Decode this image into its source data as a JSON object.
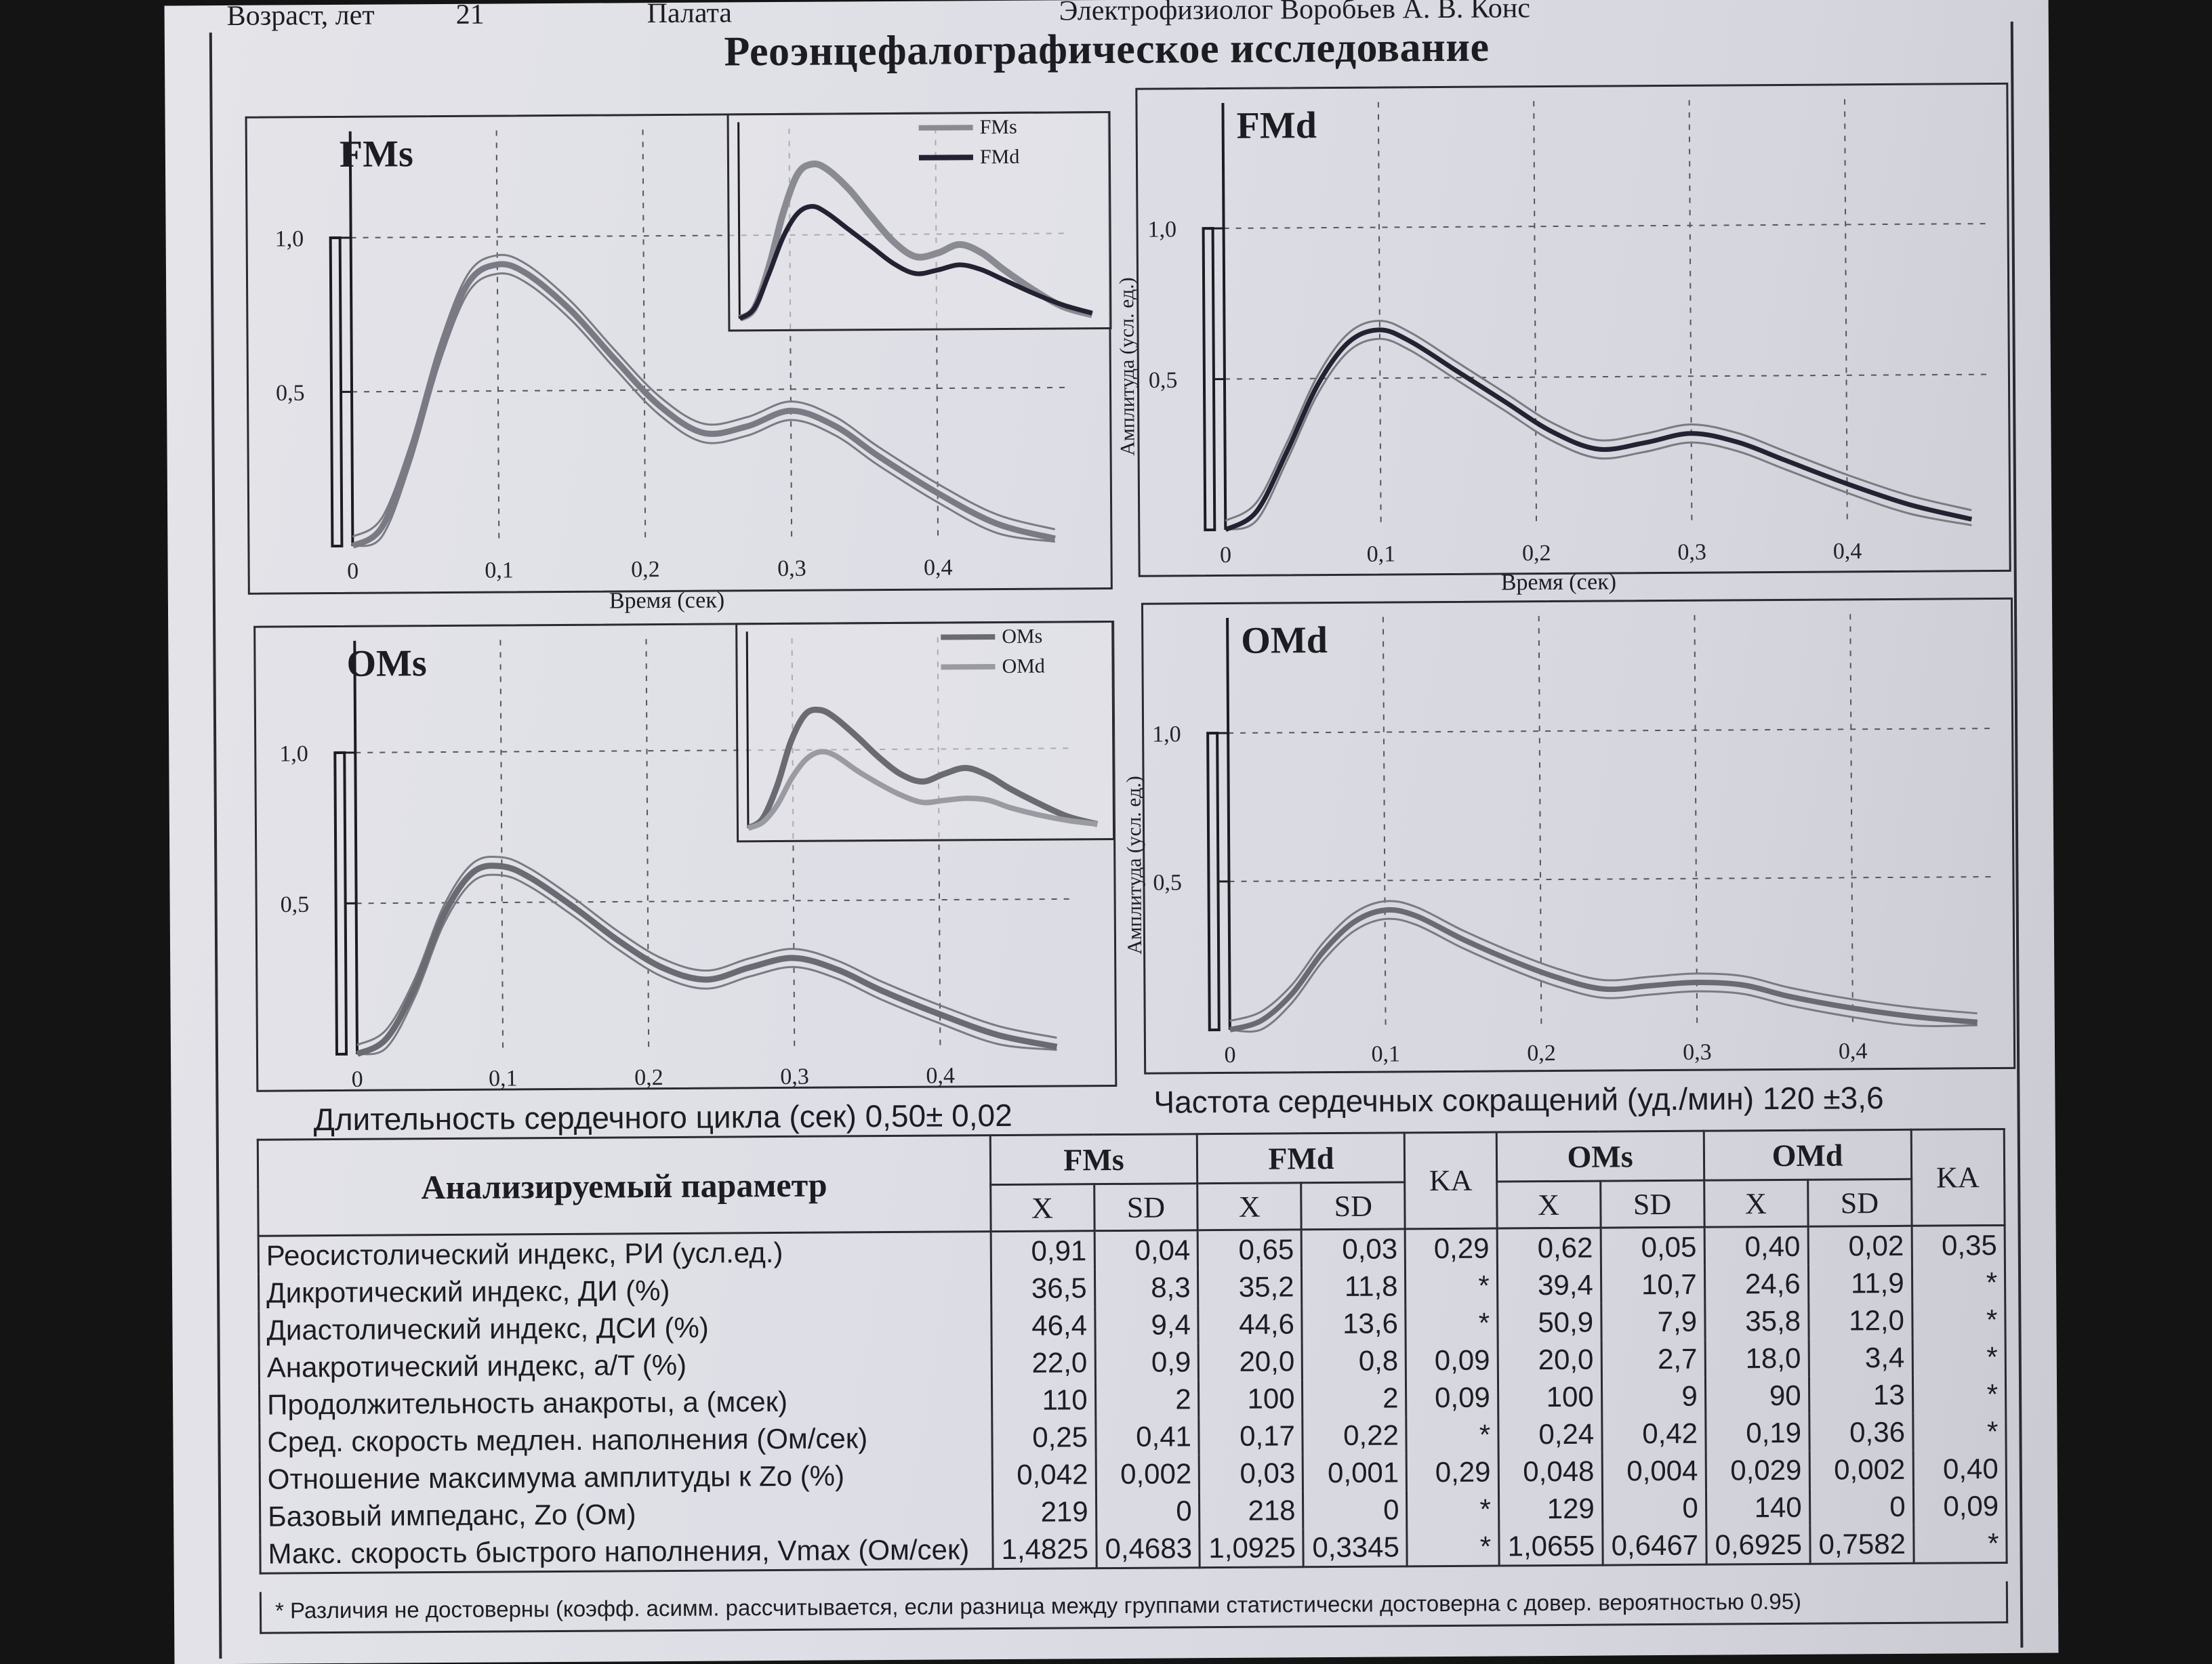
{
  "header": {
    "age_label": "Возраст, лет",
    "age_value": "21",
    "ward_label": "Палата",
    "doctor_label": "Электрофизиолог Воробьев А. В. Конс"
  },
  "title": "Реоэнцефалографическое исследование",
  "axis": {
    "time_label": "Время (сек)",
    "amplitude_label": "Амплитуда (усл. ед.)",
    "x_ticks": [
      "0",
      "0,1",
      "0,2",
      "0,3",
      "0,4"
    ],
    "y_ticks": [
      "1,0",
      "0,5"
    ]
  },
  "panels": {
    "FMs": {
      "label": "FMs"
    },
    "FMd": {
      "label": "FMd"
    },
    "OMs": {
      "label": "OMs"
    },
    "OMd": {
      "label": "OMd"
    }
  },
  "insets": {
    "top": {
      "legend": [
        "FMs",
        "FMd"
      ]
    },
    "bottom": {
      "legend": [
        "OMs",
        "OMd"
      ]
    }
  },
  "chart_data": [
    {
      "type": "line",
      "title": "FMs",
      "xlabel": "Время (сек)",
      "ylabel": "",
      "xlim": [
        0,
        0.49
      ],
      "ylim": [
        0,
        1.0
      ],
      "series": [
        {
          "name": "FMs",
          "x": [
            0,
            0.02,
            0.04,
            0.06,
            0.08,
            0.1,
            0.12,
            0.15,
            0.18,
            0.21,
            0.24,
            0.27,
            0.3,
            0.33,
            0.36,
            0.4,
            0.44,
            0.48
          ],
          "values": [
            0,
            0.06,
            0.3,
            0.62,
            0.85,
            0.91,
            0.88,
            0.76,
            0.6,
            0.45,
            0.36,
            0.38,
            0.43,
            0.38,
            0.28,
            0.16,
            0.06,
            0.01
          ]
        }
      ]
    },
    {
      "type": "line",
      "title": "FMd",
      "xlabel": "Время (сек)",
      "ylabel": "Амплитуда (усл. ед.)",
      "xlim": [
        0,
        0.49
      ],
      "ylim": [
        0,
        1.0
      ],
      "series": [
        {
          "name": "FMd",
          "x": [
            0,
            0.02,
            0.04,
            0.06,
            0.08,
            0.1,
            0.12,
            0.15,
            0.18,
            0.21,
            0.24,
            0.27,
            0.3,
            0.33,
            0.36,
            0.4,
            0.44,
            0.48
          ],
          "values": [
            0,
            0.06,
            0.26,
            0.48,
            0.62,
            0.66,
            0.62,
            0.52,
            0.42,
            0.32,
            0.26,
            0.28,
            0.31,
            0.28,
            0.22,
            0.14,
            0.07,
            0.02
          ]
        }
      ]
    },
    {
      "type": "line",
      "title": "OMs",
      "xlabel": "",
      "ylabel": "",
      "xlim": [
        0,
        0.49
      ],
      "ylim": [
        0,
        1.0
      ],
      "series": [
        {
          "name": "OMs",
          "x": [
            0,
            0.02,
            0.04,
            0.06,
            0.08,
            0.1,
            0.12,
            0.15,
            0.18,
            0.21,
            0.24,
            0.27,
            0.3,
            0.33,
            0.36,
            0.4,
            0.44,
            0.48
          ],
          "values": [
            0,
            0.05,
            0.22,
            0.46,
            0.6,
            0.62,
            0.58,
            0.48,
            0.37,
            0.28,
            0.24,
            0.28,
            0.31,
            0.27,
            0.2,
            0.12,
            0.05,
            0.01
          ]
        }
      ]
    },
    {
      "type": "line",
      "title": "OMd",
      "xlabel": "",
      "ylabel": "Амплитуда (усл. ед.)",
      "xlim": [
        0,
        0.49
      ],
      "ylim": [
        0,
        1.0
      ],
      "series": [
        {
          "name": "OMd",
          "x": [
            0,
            0.02,
            0.04,
            0.06,
            0.08,
            0.1,
            0.12,
            0.15,
            0.18,
            0.21,
            0.24,
            0.27,
            0.3,
            0.33,
            0.36,
            0.4,
            0.44,
            0.48
          ],
          "values": [
            0,
            0.03,
            0.12,
            0.26,
            0.36,
            0.4,
            0.38,
            0.3,
            0.23,
            0.17,
            0.13,
            0.14,
            0.15,
            0.14,
            0.1,
            0.06,
            0.03,
            0.01
          ]
        }
      ]
    }
  ],
  "summary": {
    "cycle_label": "Длительность сердечного цикла (сек)",
    "cycle_value": "0,50± 0,02",
    "hr_label": "Частота сердечных сокращений (уд./мин)",
    "hr_value": "120 ±3,6"
  },
  "table": {
    "param_header": "Анализируемый параметр",
    "groups": [
      "FMs",
      "FMd",
      "KA",
      "OMs",
      "OMd",
      "KA"
    ],
    "sub": [
      "X",
      "SD"
    ],
    "rows": [
      {
        "name": "Реосистолический индекс, РИ (усл.ед.)",
        "v": [
          "0,91",
          "0,04",
          "0,65",
          "0,03",
          "0,29",
          "0,62",
          "0,05",
          "0,40",
          "0,02",
          "0,35"
        ]
      },
      {
        "name": "Дикротический индекс, ДИ (%)",
        "v": [
          "36,5",
          "8,3",
          "35,2",
          "11,8",
          "*",
          "39,4",
          "10,7",
          "24,6",
          "11,9",
          "*"
        ]
      },
      {
        "name": "Диастолический индекс, ДСИ (%)",
        "v": [
          "46,4",
          "9,4",
          "44,6",
          "13,6",
          "*",
          "50,9",
          "7,9",
          "35,8",
          "12,0",
          "*"
        ]
      },
      {
        "name": "Анакротический индекс, a/T (%)",
        "v": [
          "22,0",
          "0,9",
          "20,0",
          "0,8",
          "0,09",
          "20,0",
          "2,7",
          "18,0",
          "3,4",
          "*"
        ]
      },
      {
        "name": "Продолжительность анакроты, a (мсек)",
        "v": [
          "110",
          "2",
          "100",
          "2",
          "0,09",
          "100",
          "9",
          "90",
          "13",
          "*"
        ]
      },
      {
        "name": "Сред. скорость медлен. наполнения (Ом/сек)",
        "v": [
          "0,25",
          "0,41",
          "0,17",
          "0,22",
          "*",
          "0,24",
          "0,42",
          "0,19",
          "0,36",
          "*"
        ]
      },
      {
        "name": "Отношение максимума амплитуды к Zo (%)",
        "v": [
          "0,042",
          "0,002",
          "0,03",
          "0,001",
          "0,29",
          "0,048",
          "0,004",
          "0,029",
          "0,002",
          "0,40"
        ]
      },
      {
        "name": "Базовый импеданс, Zo (Ом)",
        "v": [
          "219",
          "0",
          "218",
          "0",
          "*",
          "129",
          "0",
          "140",
          "0",
          "0,09"
        ]
      },
      {
        "name": "Макс. скорость быстрого наполнения, Vmax (Ом/сек)",
        "v": [
          "1,4825",
          "0,4683",
          "1,0925",
          "0,3345",
          "*",
          "1,0655",
          "0,6467",
          "0,6925",
          "0,7582",
          "*"
        ]
      }
    ]
  },
  "footnote": "* Различия не достоверны (коэфф. асимм. рассчитывается, если разница между группами статистически достоверна с довер. вероятностью 0.95)",
  "colors": {
    "ink": "#1c1c22",
    "trace_light": "#8a8a92",
    "trace_dark": "#222232",
    "paper": "#dedee6"
  }
}
